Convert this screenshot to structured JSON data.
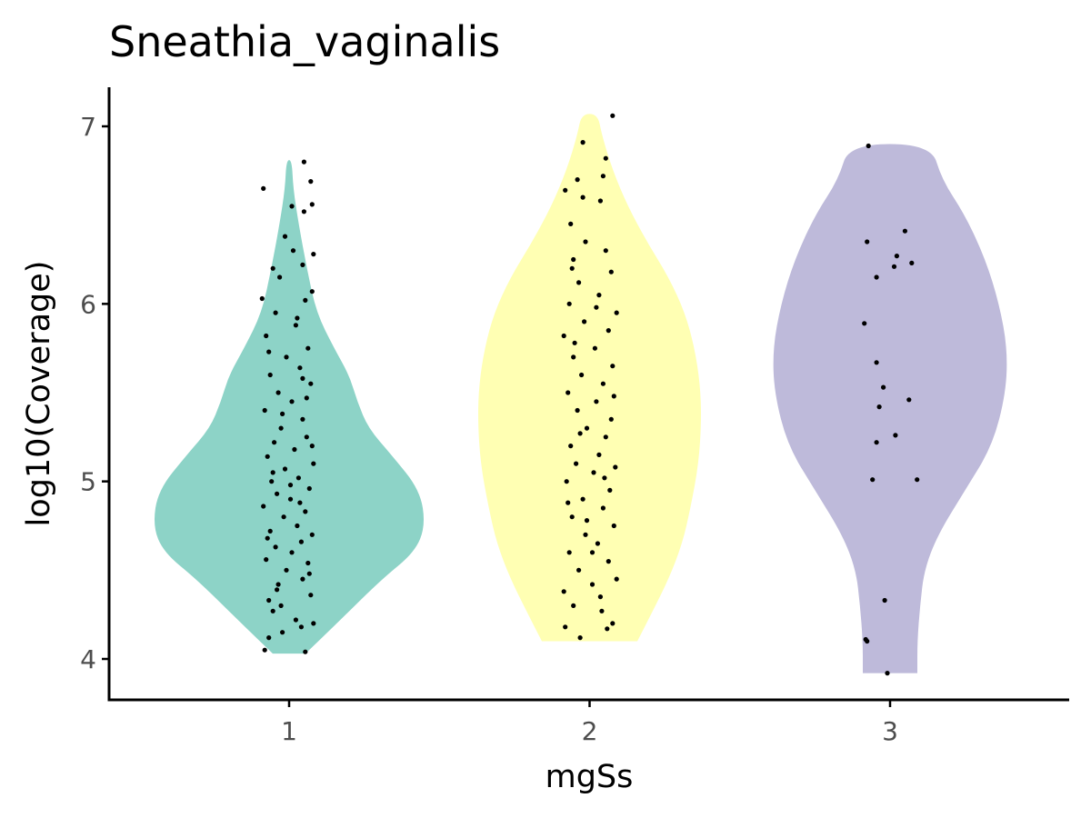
{
  "chart_data": {
    "type": "violin",
    "title": "Sneathia_vaginalis",
    "xlabel": "mgSs",
    "ylabel": "log10(Coverage)",
    "categories": [
      "1",
      "2",
      "3"
    ],
    "ylim": [
      3.77,
      7.2
    ],
    "yticks": [
      4,
      5,
      6,
      7
    ],
    "grid": false,
    "legend": "none",
    "series": [
      {
        "category": "1",
        "color": "#8DD3C7",
        "range": [
          4.03,
          6.81
        ],
        "density": [
          [
            4.03,
            0.12
          ],
          [
            4.2,
            0.35
          ],
          [
            4.45,
            0.68
          ],
          [
            4.6,
            0.92
          ],
          [
            4.75,
            1.0
          ],
          [
            4.95,
            0.96
          ],
          [
            5.15,
            0.75
          ],
          [
            5.3,
            0.58
          ],
          [
            5.45,
            0.5
          ],
          [
            5.6,
            0.44
          ],
          [
            5.75,
            0.33
          ],
          [
            5.95,
            0.2
          ],
          [
            6.2,
            0.13
          ],
          [
            6.45,
            0.07
          ],
          [
            6.65,
            0.03
          ],
          [
            6.81,
            0.02
          ]
        ],
        "points": [
          [
            -0.18,
            4.05
          ],
          [
            0.12,
            4.04
          ],
          [
            -0.05,
            4.15
          ],
          [
            0.18,
            4.2
          ],
          [
            -0.12,
            4.27
          ],
          [
            0.05,
            4.22
          ],
          [
            -0.15,
            4.33
          ],
          [
            0.16,
            4.36
          ],
          [
            -0.08,
            4.42
          ],
          [
            0.1,
            4.45
          ],
          [
            -0.02,
            4.5
          ],
          [
            0.14,
            4.54
          ],
          [
            -0.17,
            4.56
          ],
          [
            0.02,
            4.6
          ],
          [
            -0.1,
            4.63
          ],
          [
            0.09,
            4.66
          ],
          [
            0.17,
            4.7
          ],
          [
            -0.14,
            4.72
          ],
          [
            0.06,
            4.75
          ],
          [
            -0.04,
            4.8
          ],
          [
            0.12,
            4.83
          ],
          [
            -0.19,
            4.86
          ],
          [
            0.01,
            4.9
          ],
          [
            -0.09,
            4.93
          ],
          [
            0.15,
            4.96
          ],
          [
            -0.13,
            5.0
          ],
          [
            0.07,
            5.02
          ],
          [
            -0.03,
            5.07
          ],
          [
            0.18,
            5.1
          ],
          [
            -0.16,
            5.14
          ],
          [
            0.04,
            5.18
          ],
          [
            -0.11,
            5.22
          ],
          [
            0.13,
            5.25
          ],
          [
            -0.06,
            5.3
          ],
          [
            0.1,
            5.35
          ],
          [
            -0.18,
            5.4
          ],
          [
            0.02,
            5.45
          ],
          [
            -0.08,
            5.5
          ],
          [
            0.16,
            5.55
          ],
          [
            -0.14,
            5.6
          ],
          [
            0.08,
            5.64
          ],
          [
            -0.02,
            5.7
          ],
          [
            0.14,
            5.75
          ],
          [
            -0.17,
            5.82
          ],
          [
            0.05,
            5.88
          ],
          [
            -0.1,
            5.95
          ],
          [
            0.12,
            6.02
          ],
          [
            -0.2,
            6.03
          ],
          [
            0.17,
            6.07
          ],
          [
            -0.07,
            6.15
          ],
          [
            0.1,
            6.22
          ],
          [
            -0.12,
            6.2
          ],
          [
            0.18,
            6.28
          ],
          [
            0.03,
            6.3
          ],
          [
            -0.03,
            6.38
          ],
          [
            0.02,
            6.55
          ],
          [
            0.11,
            6.52
          ],
          [
            0.17,
            6.56
          ],
          [
            0.16,
            6.69
          ],
          [
            -0.19,
            6.65
          ],
          [
            0.11,
            6.8
          ],
          [
            -0.15,
            4.12
          ],
          [
            0.09,
            4.18
          ],
          [
            -0.06,
            4.3
          ],
          [
            0.15,
            4.48
          ],
          [
            -0.16,
            4.68
          ],
          [
            0.08,
            4.88
          ],
          [
            -0.12,
            5.05
          ],
          [
            0.17,
            5.2
          ],
          [
            -0.05,
            5.38
          ],
          [
            0.1,
            5.58
          ],
          [
            -0.15,
            5.73
          ],
          [
            0.06,
            5.92
          ],
          [
            -0.09,
            4.39
          ],
          [
            0.01,
            4.98
          ],
          [
            0.13,
            5.47
          ]
        ]
      },
      {
        "category": "2",
        "color": "#FFFFB3",
        "range": [
          4.1,
          7.07
        ],
        "density": [
          [
            4.1,
            0.35
          ],
          [
            4.25,
            0.45
          ],
          [
            4.45,
            0.58
          ],
          [
            4.65,
            0.68
          ],
          [
            4.85,
            0.74
          ],
          [
            5.1,
            0.8
          ],
          [
            5.35,
            0.82
          ],
          [
            5.55,
            0.81
          ],
          [
            5.75,
            0.77
          ],
          [
            5.95,
            0.7
          ],
          [
            6.15,
            0.58
          ],
          [
            6.35,
            0.42
          ],
          [
            6.55,
            0.28
          ],
          [
            6.75,
            0.17
          ],
          [
            6.95,
            0.09
          ],
          [
            7.07,
            0.06
          ]
        ],
        "points": [
          [
            -0.18,
            4.18
          ],
          [
            0.13,
            4.17
          ],
          [
            -0.07,
            4.12
          ],
          [
            0.17,
            4.2
          ],
          [
            -0.12,
            4.3
          ],
          [
            0.08,
            4.35
          ],
          [
            -0.19,
            4.38
          ],
          [
            0.02,
            4.42
          ],
          [
            0.2,
            4.45
          ],
          [
            -0.08,
            4.5
          ],
          [
            0.14,
            4.55
          ],
          [
            -0.15,
            4.6
          ],
          [
            0.06,
            4.65
          ],
          [
            -0.03,
            4.7
          ],
          [
            0.18,
            4.75
          ],
          [
            -0.13,
            4.8
          ],
          [
            0.1,
            4.85
          ],
          [
            -0.05,
            4.9
          ],
          [
            0.15,
            4.95
          ],
          [
            -0.17,
            5.0
          ],
          [
            0.03,
            5.05
          ],
          [
            -0.1,
            5.1
          ],
          [
            0.19,
            5.08
          ],
          [
            0.07,
            5.15
          ],
          [
            -0.14,
            5.2
          ],
          [
            0.12,
            5.25
          ],
          [
            -0.02,
            5.3
          ],
          [
            0.16,
            5.35
          ],
          [
            -0.09,
            5.4
          ],
          [
            0.05,
            5.45
          ],
          [
            -0.16,
            5.5
          ],
          [
            0.1,
            5.55
          ],
          [
            -0.06,
            5.6
          ],
          [
            0.17,
            5.65
          ],
          [
            -0.12,
            5.7
          ],
          [
            0.04,
            5.75
          ],
          [
            -0.19,
            5.82
          ],
          [
            0.14,
            5.85
          ],
          [
            -0.04,
            5.9
          ],
          [
            0.2,
            5.95
          ],
          [
            -0.15,
            6.0
          ],
          [
            0.07,
            6.05
          ],
          [
            -0.08,
            6.12
          ],
          [
            0.16,
            6.18
          ],
          [
            -0.12,
            6.25
          ],
          [
            0.12,
            6.3
          ],
          [
            -0.03,
            6.35
          ],
          [
            -0.14,
            6.45
          ],
          [
            -0.18,
            6.64
          ],
          [
            -0.09,
            6.7
          ],
          [
            -0.05,
            6.6
          ],
          [
            0.08,
            6.58
          ],
          [
            0.1,
            6.72
          ],
          [
            0.12,
            6.82
          ],
          [
            -0.05,
            6.91
          ],
          [
            0.17,
            7.06
          ],
          [
            0.02,
            4.6
          ],
          [
            -0.16,
            4.88
          ],
          [
            0.11,
            5.02
          ],
          [
            -0.07,
            5.27
          ],
          [
            0.18,
            5.48
          ],
          [
            -0.11,
            5.78
          ],
          [
            0.05,
            5.98
          ],
          [
            -0.13,
            6.2
          ],
          [
            0.09,
            4.27
          ],
          [
            -0.02,
            4.78
          ]
        ]
      },
      {
        "category": "3",
        "color": "#BEBADA",
        "range": [
          3.92,
          6.9
        ],
        "density": [
          [
            3.92,
            0.2
          ],
          [
            4.1,
            0.2
          ],
          [
            4.3,
            0.22
          ],
          [
            4.5,
            0.25
          ],
          [
            4.7,
            0.35
          ],
          [
            4.95,
            0.55
          ],
          [
            5.2,
            0.75
          ],
          [
            5.5,
            0.85
          ],
          [
            5.75,
            0.86
          ],
          [
            6.0,
            0.8
          ],
          [
            6.25,
            0.7
          ],
          [
            6.5,
            0.55
          ],
          [
            6.7,
            0.38
          ],
          [
            6.9,
            0.3
          ]
        ],
        "points": [
          [
            -0.18,
            4.11
          ],
          [
            -0.17,
            4.1
          ],
          [
            -0.02,
            3.92
          ],
          [
            -0.04,
            4.33
          ],
          [
            -0.13,
            5.01
          ],
          [
            -0.1,
            5.22
          ],
          [
            0.04,
            5.26
          ],
          [
            -0.08,
            5.42
          ],
          [
            -0.05,
            5.53
          ],
          [
            0.14,
            5.46
          ],
          [
            0.2,
            5.01
          ],
          [
            -0.1,
            5.67
          ],
          [
            -0.19,
            5.89
          ],
          [
            -0.17,
            6.35
          ],
          [
            -0.1,
            6.15
          ],
          [
            0.03,
            6.21
          ],
          [
            0.05,
            6.27
          ],
          [
            0.11,
            6.41
          ],
          [
            0.16,
            6.23
          ],
          [
            -0.16,
            6.89
          ]
        ]
      }
    ]
  }
}
